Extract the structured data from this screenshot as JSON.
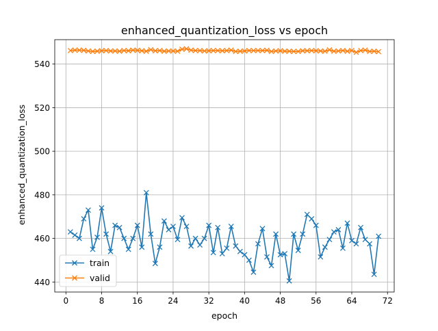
{
  "chart_data": {
    "type": "line",
    "title": "enhanced_quantization_loss vs epoch",
    "xlabel": "epoch",
    "ylabel": "enhanced_quantization_loss",
    "xlim": [
      -2.5,
      73.5
    ],
    "ylim": [
      435.4,
      551.2
    ],
    "xticks": [
      0,
      8,
      16,
      24,
      32,
      40,
      48,
      56,
      64,
      72
    ],
    "yticks": [
      440,
      460,
      480,
      500,
      520,
      540
    ],
    "grid": true,
    "legend_position": "lower-left",
    "x": [
      1,
      2,
      3,
      4,
      5,
      6,
      7,
      8,
      9,
      10,
      11,
      12,
      13,
      14,
      15,
      16,
      17,
      18,
      19,
      20,
      21,
      22,
      23,
      24,
      25,
      26,
      27,
      28,
      29,
      30,
      31,
      32,
      33,
      34,
      35,
      36,
      37,
      38,
      39,
      40,
      41,
      42,
      43,
      44,
      45,
      46,
      47,
      48,
      49,
      50,
      51,
      52,
      53,
      54,
      55,
      56,
      57,
      58,
      59,
      60,
      61,
      62,
      63,
      64,
      65,
      66,
      67,
      68,
      69,
      70
    ],
    "series": [
      {
        "name": "train",
        "color": "#1f77b4",
        "marker": "x",
        "values": [
          463,
          461.5,
          460,
          469,
          473,
          455,
          460.5,
          474,
          462,
          454,
          466,
          465,
          460,
          455,
          460,
          466,
          456,
          481,
          462,
          448.5,
          456,
          468,
          464,
          465.5,
          459.5,
          469.5,
          465.5,
          456.5,
          460,
          457,
          460,
          466,
          453.5,
          465,
          453,
          455.5,
          465.5,
          456.5,
          454,
          452.5,
          450,
          444.5,
          457.5,
          464.5,
          451.5,
          447.5,
          462,
          452.5,
          453,
          440.5,
          462,
          454.5,
          462,
          471,
          469,
          466,
          451.5,
          456,
          459.5,
          463,
          464,
          455.5,
          467,
          459,
          457.5,
          465,
          459.5,
          457.5,
          443.5,
          461
        ]
      },
      {
        "name": "valid",
        "color": "#ff7f0e",
        "marker": "x",
        "values": [
          546.2,
          546.4,
          546.4,
          546.3,
          546,
          545.8,
          545.9,
          546.1,
          546.2,
          546,
          546,
          545.9,
          546.2,
          546.1,
          546.4,
          546.3,
          546.1,
          545.9,
          546.6,
          546.1,
          546.2,
          545.9,
          546,
          546,
          545.9,
          546.8,
          547,
          546.4,
          546.2,
          546.2,
          546,
          546.1,
          546.2,
          546.2,
          546.1,
          546.2,
          546.4,
          545.8,
          545.9,
          546,
          546.2,
          546.2,
          546.2,
          546.2,
          546.3,
          545.8,
          546,
          546.1,
          545.9,
          545.9,
          545.8,
          545.8,
          546.1,
          546.1,
          546.2,
          546.1,
          546,
          545.9,
          546.5,
          545.9,
          546,
          546.2,
          545.9,
          546.2,
          545.4,
          546.2,
          546.4,
          545.8,
          545.9,
          545.7
        ]
      }
    ]
  }
}
